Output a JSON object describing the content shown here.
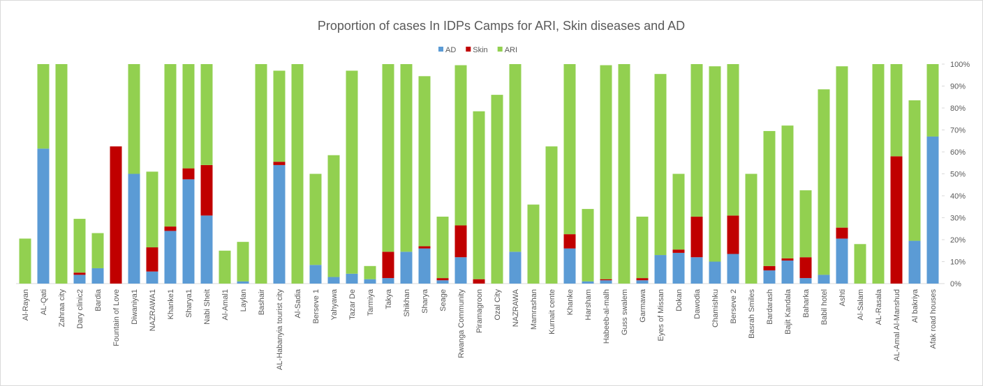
{
  "chart_data": {
    "type": "stacked-bar",
    "title": "Proportion of cases In IDPs Camps for ARI, Skin diseases and AD",
    "categories": [
      "Al-Rayan",
      "AL-Qati",
      "Zahraa city",
      "Dary clinic2",
      "Bardia",
      "Fountain of Love",
      "Diwaniya1",
      "NAZRAWA1",
      "Khanke1",
      "Sharya1",
      "Nabi Sheit",
      "Al-Amal1",
      "Laylan",
      "Bashair",
      "AL-Habanyia tourist city",
      "Al-Sadia",
      "Berseve 1",
      "Yahyawa",
      "Tazar De",
      "Tarmiya",
      "Takya",
      "Shikhan",
      "Sharya",
      "Seage",
      "Rwanga Community",
      "Piramagroon",
      "Ozal City",
      "NAZRAWA",
      "Mamrashan",
      "Kurnait cente",
      "Khanke",
      "Harsham",
      "Habeeb-al-malh",
      "Guss swalem",
      "Garmawa",
      "Eyes of Missan",
      "Dokan",
      "Dawodia",
      "Chamishku",
      "Berseve 2",
      "Basrah Smiles",
      "Bardarash",
      "Bajit Kandala",
      "Baharka",
      "Babil hotel",
      "Ashti",
      "Al-Salam",
      "AL-Rasala",
      "AL-Amal Al-Manshud",
      "Al bakriya",
      "Afak road houses"
    ],
    "series": [
      {
        "name": "AD",
        "color": "#5b9bd5",
        "values": [
          0,
          61.5,
          0,
          4,
          7,
          0,
          50,
          5.5,
          24,
          47.5,
          31,
          0,
          1,
          0,
          54,
          0,
          8.5,
          3,
          4.5,
          2,
          2.5,
          14.5,
          16,
          1.5,
          12,
          0,
          0,
          14.5,
          0,
          0,
          16,
          1,
          1.5,
          0,
          1.5,
          13,
          14,
          12,
          10,
          13.5,
          0,
          6,
          10.5,
          2.5,
          4,
          20.5,
          0,
          0,
          0,
          19.5,
          67
        ]
      },
      {
        "name": "Skin",
        "color": "#c00000",
        "values": [
          0,
          0,
          0,
          1,
          0,
          62.5,
          0,
          11,
          2,
          5,
          23,
          0,
          0,
          0,
          1.5,
          0,
          0,
          0,
          0,
          0,
          12,
          0,
          1,
          1,
          14.5,
          2,
          0,
          0,
          0,
          0,
          6.5,
          0,
          0.5,
          0,
          1,
          0,
          1.5,
          18.5,
          0,
          17.5,
          0,
          2,
          1,
          9.5,
          0,
          5,
          0,
          0,
          58,
          0,
          0
        ]
      },
      {
        "name": "ARI",
        "color": "#92d050",
        "values": [
          20.5,
          38.5,
          100,
          24.5,
          16,
          0,
          50,
          34.5,
          74,
          47.5,
          46,
          15,
          18,
          100,
          41.5,
          100,
          41.5,
          55.5,
          92.5,
          6,
          85.5,
          85.5,
          77.5,
          28,
          73,
          76.5,
          86,
          85.5,
          36,
          62.5,
          77.5,
          33,
          97.5,
          100,
          28,
          82.5,
          34.5,
          69.5,
          89,
          69,
          50,
          61.5,
          60.5,
          30.5,
          84.5,
          73.5,
          18,
          100,
          42,
          64,
          33
        ]
      }
    ],
    "ylim": [
      0,
      100
    ],
    "yticks": [
      {
        "value": 0,
        "label": "0%"
      },
      {
        "value": 10,
        "label": "10%"
      },
      {
        "value": 20,
        "label": "20%"
      },
      {
        "value": 30,
        "label": "30%"
      },
      {
        "value": 40,
        "label": "40%"
      },
      {
        "value": 50,
        "label": "50%"
      },
      {
        "value": 60,
        "label": "60%"
      },
      {
        "value": 70,
        "label": "70%"
      },
      {
        "value": 80,
        "label": "80%"
      },
      {
        "value": 90,
        "label": "90%"
      },
      {
        "value": 100,
        "label": "100%"
      }
    ]
  }
}
